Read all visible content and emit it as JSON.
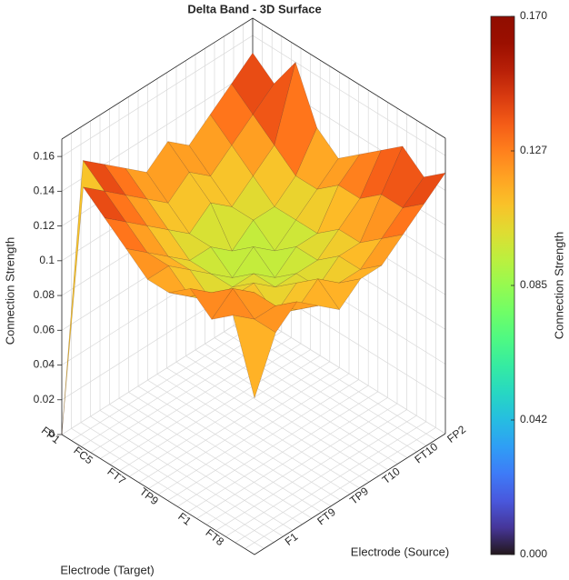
{
  "chart_data": {
    "type": "surface3d",
    "title": "Delta Band - 3D Surface",
    "zlabel": "Connection Strength",
    "xlabel": "Electrode (Target)",
    "ylabel": "Electrode (Source)",
    "x_categories": [
      "FP1",
      "FC5",
      "FT7",
      "TP9",
      "F1",
      "FT8"
    ],
    "y_categories": [
      "FP2",
      "FT10",
      "T10",
      "TP9",
      "FT9",
      "F1"
    ],
    "z": [
      [
        0.15,
        0.14,
        0.13,
        0.12,
        0.13,
        0.12,
        0.13,
        0.14,
        0.15,
        0.0
      ],
      [
        0.14,
        0.13,
        0.12,
        0.11,
        0.12,
        0.11,
        0.12,
        0.13,
        0.14,
        0.15
      ],
      [
        0.16,
        0.12,
        0.11,
        0.1,
        0.11,
        0.1,
        0.11,
        0.12,
        0.13,
        0.14
      ],
      [
        0.13,
        0.11,
        0.1,
        0.1,
        0.09,
        0.1,
        0.1,
        0.11,
        0.12,
        0.13
      ],
      [
        0.12,
        0.11,
        0.1,
        0.09,
        0.1,
        0.09,
        0.1,
        0.11,
        0.12,
        0.12
      ],
      [
        0.13,
        0.12,
        0.1,
        0.1,
        0.09,
        0.1,
        0.1,
        0.1,
        0.11,
        0.12
      ],
      [
        0.14,
        0.12,
        0.11,
        0.1,
        0.1,
        0.1,
        0.11,
        0.11,
        0.12,
        0.13
      ],
      [
        0.15,
        0.13,
        0.11,
        0.11,
        0.1,
        0.11,
        0.1,
        0.12,
        0.13,
        0.12
      ],
      [
        0.14,
        0.13,
        0.12,
        0.11,
        0.11,
        0.12,
        0.11,
        0.12,
        0.12,
        0.13
      ],
      [
        0.15,
        0.14,
        0.13,
        0.12,
        0.12,
        0.11,
        0.12,
        0.13,
        0.12,
        0.09
      ]
    ],
    "zlim": [
      0,
      0.17
    ],
    "zticks": [
      0,
      0.02,
      0.04,
      0.06,
      0.08,
      0.1,
      0.12,
      0.14,
      0.16
    ],
    "grid": true,
    "colormap": "turbo",
    "colorbar": {
      "label": "Connection Strength",
      "lim": [
        0,
        0.17
      ],
      "ticks": [
        {
          "value": 0,
          "label": "0.000"
        },
        {
          "value": 0.0425,
          "label": "0.042"
        },
        {
          "value": 0.085,
          "label": "0.085"
        },
        {
          "value": 0.1275,
          "label": "0.127"
        },
        {
          "value": 0.17,
          "label": "0.170"
        }
      ]
    }
  }
}
